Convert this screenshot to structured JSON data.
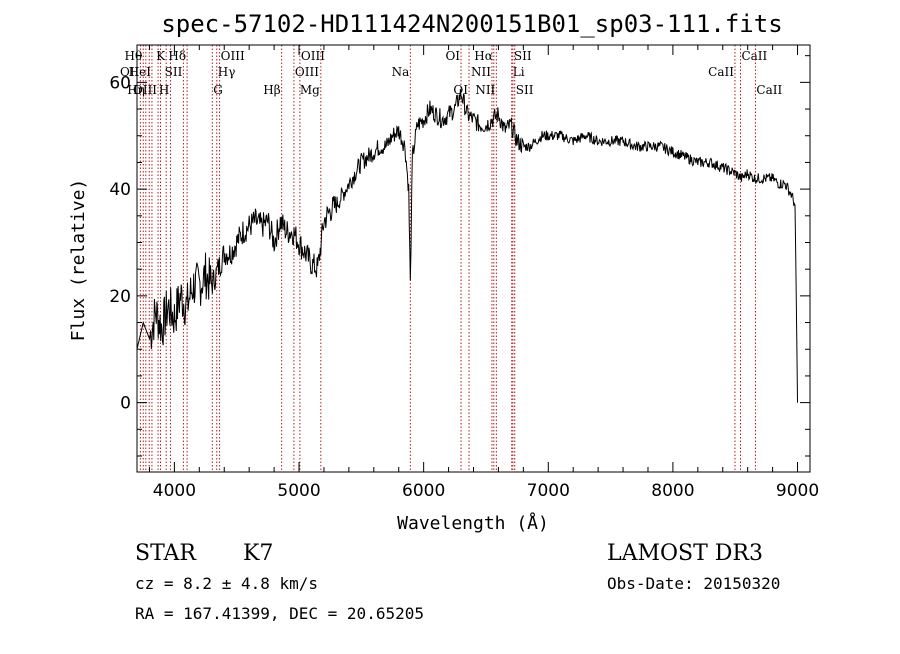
{
  "chart_data": {
    "type": "line",
    "title": "spec-57102-HD111424N200151B01_sp03-111.fits",
    "xlabel": "Wavelength (Å)",
    "ylabel": "Flux (relative)",
    "xlim": [
      3700,
      9100
    ],
    "ylim": [
      -13,
      67
    ],
    "x_ticks": [
      4000,
      5000,
      6000,
      7000,
      8000,
      9000
    ],
    "y_ticks": [
      0,
      20,
      40,
      60
    ],
    "y_minor_step": 5,
    "x_minor_step": 200,
    "series": [
      {
        "color": "#000000",
        "x": [
          3700,
          3750,
          3800,
          3850,
          3900,
          3950,
          4000,
          4050,
          4100,
          4150,
          4200,
          4250,
          4300,
          4350,
          4400,
          4450,
          4500,
          4550,
          4600,
          4650,
          4700,
          4750,
          4800,
          4850,
          4900,
          4950,
          5000,
          5050,
          5100,
          5150,
          5200,
          5250,
          5300,
          5350,
          5400,
          5450,
          5500,
          5550,
          5600,
          5650,
          5700,
          5750,
          5800,
          5850,
          5880,
          5893,
          5910,
          5950,
          6000,
          6050,
          6100,
          6150,
          6200,
          6250,
          6300,
          6350,
          6400,
          6450,
          6500,
          6550,
          6600,
          6650,
          6700,
          6750,
          6800,
          6850,
          6900,
          6950,
          7000,
          7100,
          7200,
          7300,
          7400,
          7500,
          7600,
          7700,
          7800,
          7900,
          8000,
          8100,
          8200,
          8300,
          8400,
          8500,
          8550,
          8600,
          8650,
          8700,
          8750,
          8800,
          8850,
          8900,
          8950,
          8980,
          8995,
          9000
        ],
        "y": [
          10,
          15,
          12,
          17,
          14,
          18,
          16,
          20,
          18,
          22,
          22,
          24,
          22,
          25,
          28,
          28,
          30,
          32,
          33,
          34,
          33,
          34,
          30,
          34,
          32,
          32,
          30,
          28,
          26,
          25,
          34,
          36,
          37,
          39,
          41,
          43,
          45,
          46,
          47,
          48,
          48,
          50,
          51,
          48,
          40,
          22,
          46,
          52,
          53,
          55,
          54,
          53,
          54,
          55,
          58,
          54,
          53,
          52,
          52,
          53,
          54,
          51,
          52,
          49,
          48,
          48,
          49,
          50,
          50,
          50,
          49,
          50,
          49,
          49,
          49,
          48,
          48,
          48,
          47,
          46,
          45,
          45,
          44,
          43,
          42,
          43,
          42,
          42,
          42,
          42,
          41,
          41,
          39,
          37,
          10,
          0
        ]
      }
    ],
    "lines": [
      {
        "x": 3727,
        "label": "OII",
        "row": 1,
        "side": "left"
      },
      {
        "x": 3750,
        "label": "Hθ",
        "row": 0,
        "side": "left"
      },
      {
        "x": 3771,
        "label": "Hη",
        "row": 2,
        "side": "left"
      },
      {
        "x": 3798,
        "label": "",
        "row": 0,
        "side": "left"
      },
      {
        "x": 3820,
        "label": "HeI",
        "row": 1,
        "side": "left"
      },
      {
        "x": 3869,
        "label": "OIII",
        "row": 2,
        "side": "left"
      },
      {
        "x": 3889,
        "label": "",
        "row": 0,
        "side": "left"
      },
      {
        "x": 3934,
        "label": "K",
        "row": 0,
        "side": "left"
      },
      {
        "x": 3968,
        "label": "H",
        "row": 2,
        "side": "left"
      },
      {
        "x": 4072,
        "label": "SII",
        "row": 1,
        "side": "left"
      },
      {
        "x": 4102,
        "label": "Hδ",
        "row": 0,
        "side": "left"
      },
      {
        "x": 4304,
        "label": "G",
        "row": 2,
        "side": "right"
      },
      {
        "x": 4340,
        "label": "Hγ",
        "row": 1,
        "side": "right"
      },
      {
        "x": 4363,
        "label": "OIII",
        "row": 0,
        "side": "right"
      },
      {
        "x": 4861,
        "label": "Hβ",
        "row": 2,
        "side": "left"
      },
      {
        "x": 4959,
        "label": "OIII",
        "row": 1,
        "side": "right"
      },
      {
        "x": 5007,
        "label": "OIII",
        "row": 0,
        "side": "right"
      },
      {
        "x": 5175,
        "label": "Mg",
        "row": 2,
        "side": "left"
      },
      {
        "x": 5893,
        "label": "Na",
        "row": 1,
        "side": "left"
      },
      {
        "x": 6300,
        "label": "OI",
        "row": 0,
        "side": "left"
      },
      {
        "x": 6364,
        "label": "OI",
        "row": 2,
        "side": "left"
      },
      {
        "x": 6548,
        "label": "NII",
        "row": 1,
        "side": "left"
      },
      {
        "x": 6563,
        "label": "Hα",
        "row": 0,
        "side": "left"
      },
      {
        "x": 6583,
        "label": "NII",
        "row": 2,
        "side": "left"
      },
      {
        "x": 6707,
        "label": "Li",
        "row": 1,
        "side": "right"
      },
      {
        "x": 6716,
        "label": "SII",
        "row": 0,
        "side": "right"
      },
      {
        "x": 6731,
        "label": "SII",
        "row": 2,
        "side": "right"
      },
      {
        "x": 8498,
        "label": "CaII",
        "row": 1,
        "side": "left"
      },
      {
        "x": 8542,
        "label": "CaII",
        "row": 0,
        "side": "right"
      },
      {
        "x": 8662,
        "label": "CaII",
        "row": 2,
        "side": "right"
      }
    ]
  },
  "info": {
    "object_class": "STAR",
    "subclass": "K7",
    "redshift": "cz = 8.2 ± 4.8 km/s",
    "coordinates": "RA = 167.41399, DEC =  20.65205",
    "survey": "LAMOST DR3",
    "obs_date": "Obs-Date: 20150320"
  }
}
